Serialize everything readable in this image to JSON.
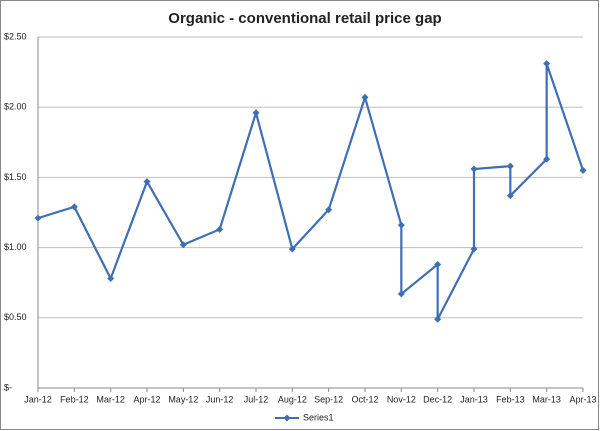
{
  "chart_data": {
    "type": "line",
    "title": "Organic - conventional  retail price gap",
    "categories": [
      "Jan-12",
      "Feb-12",
      "Mar-12",
      "Apr-12",
      "May-12",
      "Jun-12",
      "Jul-12",
      "Aug-12",
      "Sep-12",
      "Oct-12",
      "Nov-12",
      "Dec-12",
      "Jan-13",
      "Feb-13",
      "Mar-13",
      "Apr-13"
    ],
    "x": [
      "Jan-12",
      "Feb-12",
      "Mar-12",
      "Apr-12",
      "May-12",
      "Jun-12",
      "Jul-12",
      "Aug-12",
      "Sep-12",
      "Oct-12",
      "Nov-12",
      "Nov-12",
      "Dec-12",
      "Dec-12",
      "Jan-13",
      "Jan-13",
      "Feb-13",
      "Feb-13",
      "Mar-13",
      "Mar-13",
      "Apr-13"
    ],
    "series": [
      {
        "name": "Series1",
        "color": "#3e6fb5",
        "values": [
          1.21,
          1.29,
          0.78,
          1.47,
          1.02,
          1.13,
          1.96,
          0.99,
          1.27,
          2.07,
          1.16,
          0.67,
          0.88,
          0.49,
          0.99,
          1.56,
          1.58,
          1.37,
          1.63,
          2.31,
          1.55
        ]
      }
    ],
    "ylim": [
      0,
      2.5
    ],
    "yticks": [
      {
        "value": 0,
        "label": "$-"
      },
      {
        "value": 0.5,
        "label": "$0.50"
      },
      {
        "value": 1,
        "label": "$1.00"
      },
      {
        "value": 1.5,
        "label": "$1.50"
      },
      {
        "value": 2,
        "label": "$2.00"
      },
      {
        "value": 2.5,
        "label": "$2.50"
      }
    ],
    "grid": true,
    "legend": "bottom"
  }
}
